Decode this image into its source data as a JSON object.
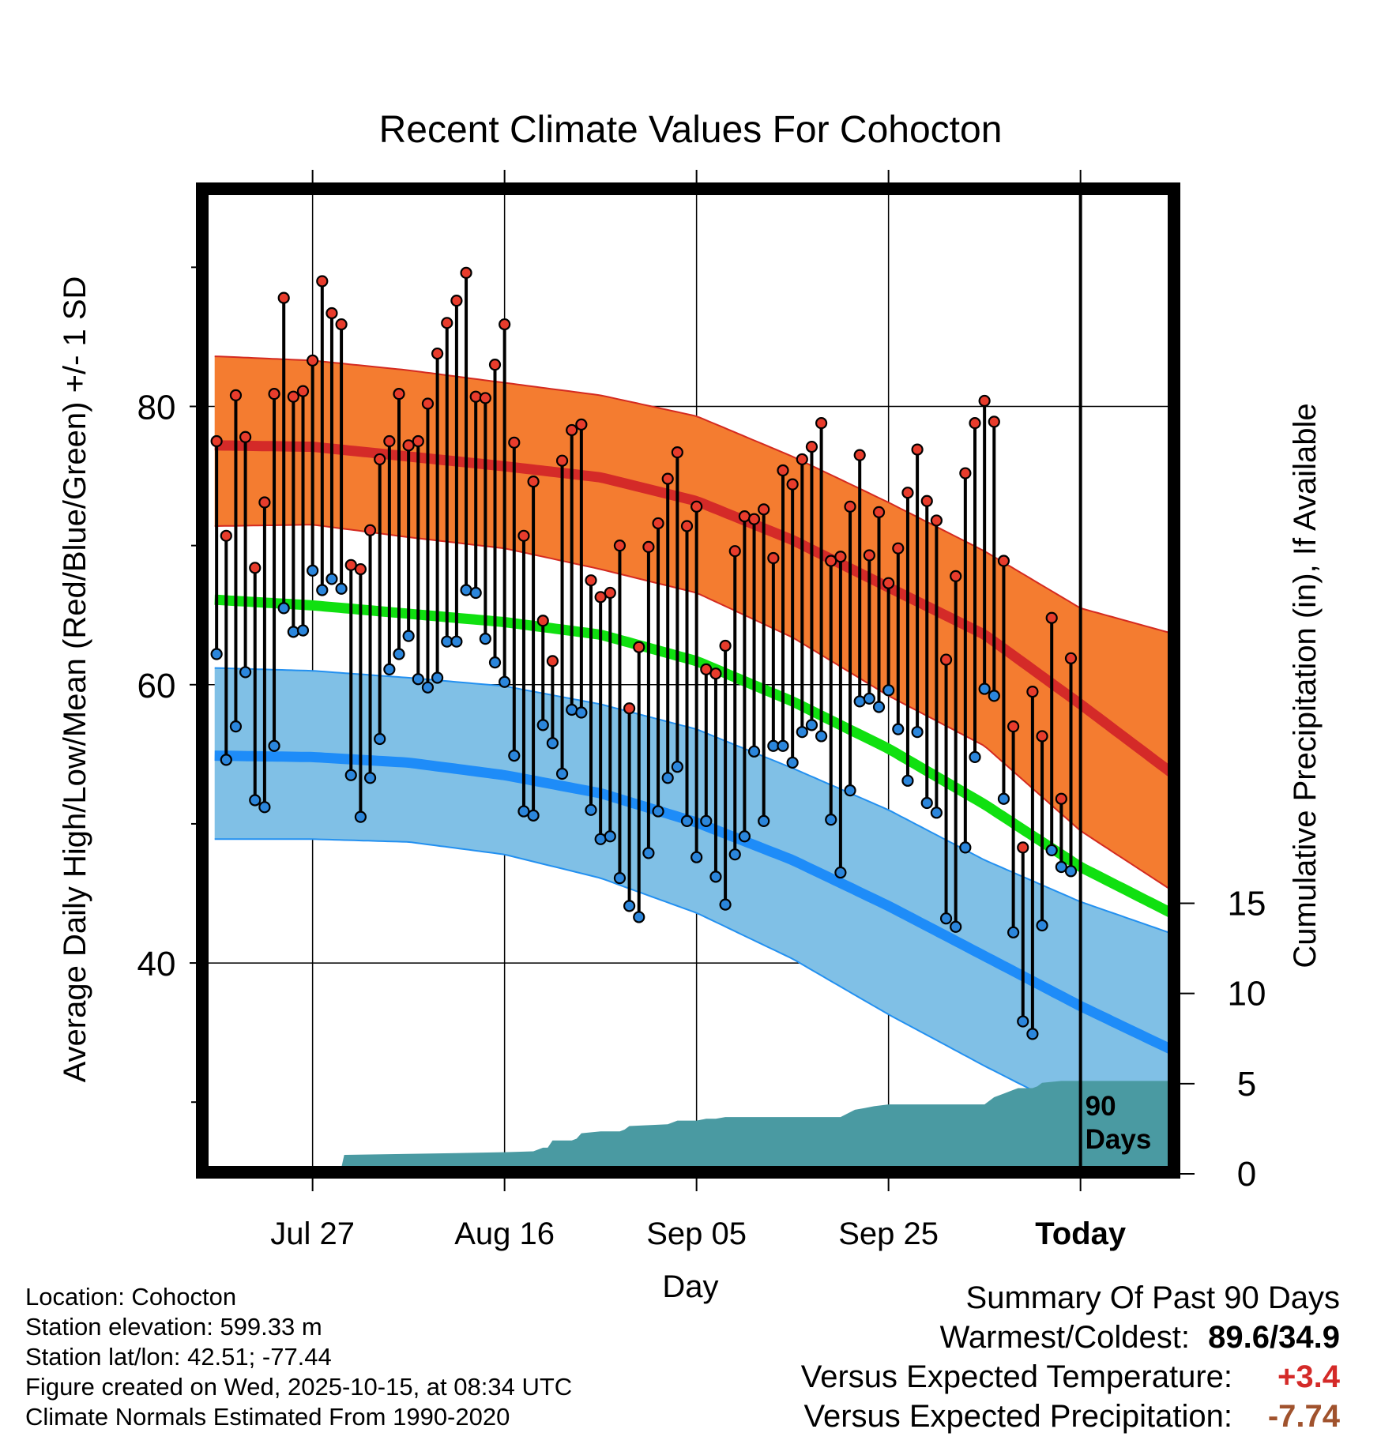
{
  "chart_data": {
    "type": "line",
    "title": "Recent Climate Values For Cohocton",
    "xlabel": "Day",
    "ylabel": "Average Daily High/Low/Mean (Red/Blue/Green) +/- 1 SD",
    "ylabel_right": "Cumulative Precipitation (in), If Available",
    "x_tick_labels": [
      "Jul 27",
      "Aug 16",
      "Sep 05",
      "Sep 25",
      "Today"
    ],
    "x_tick_days": [
      10,
      30,
      50,
      70,
      90
    ],
    "xlim": [
      -1,
      100
    ],
    "y_ticks": [
      40,
      60,
      80
    ],
    "y_minor_ticks": [
      30,
      50,
      70,
      90
    ],
    "ylim": [
      25.3,
      95.3
    ],
    "precip_ticks": [
      0,
      5,
      10,
      15
    ],
    "precip_ylim": [
      0,
      54
    ],
    "today_label": "90\nDays",
    "daily_high": [
      77.5,
      70.7,
      80.8,
      77.8,
      68.4,
      73.1,
      80.9,
      87.8,
      80.7,
      81.1,
      83.3,
      89.0,
      86.7,
      85.9,
      68.6,
      68.3,
      71.1,
      76.2,
      77.5,
      80.9,
      77.2,
      77.5,
      80.2,
      83.8,
      86.0,
      87.6,
      89.6,
      80.7,
      80.6,
      83.0,
      85.9,
      77.4,
      70.7,
      74.6,
      64.6,
      61.7,
      76.1,
      78.3,
      78.7,
      67.5,
      66.3,
      66.6,
      70.0,
      58.3,
      62.7,
      69.9,
      71.6,
      74.8,
      76.7,
      71.4,
      72.8,
      61.1,
      60.8,
      62.8,
      69.6,
      72.1,
      71.9,
      72.6,
      69.1,
      75.4,
      74.4,
      76.2,
      77.1,
      78.8,
      68.9,
      69.2,
      72.8,
      76.5,
      69.3,
      72.4,
      67.3,
      69.8,
      73.8,
      76.9,
      73.2,
      71.8,
      61.8,
      67.8,
      75.2,
      78.8,
      80.4,
      78.9,
      68.9,
      57.0,
      48.3,
      59.5,
      56.3,
      64.8,
      51.8,
      61.9
    ],
    "daily_low": [
      62.2,
      54.6,
      57.0,
      60.9,
      51.7,
      51.2,
      55.6,
      65.5,
      63.8,
      63.9,
      68.2,
      66.8,
      67.6,
      66.9,
      53.5,
      50.5,
      53.3,
      56.1,
      61.1,
      62.2,
      63.5,
      60.4,
      59.8,
      60.5,
      63.1,
      63.1,
      66.8,
      66.6,
      63.3,
      61.6,
      60.2,
      54.9,
      50.9,
      50.6,
      57.1,
      55.8,
      53.6,
      58.2,
      58.0,
      51.0,
      48.9,
      49.1,
      46.1,
      44.1,
      43.3,
      47.9,
      50.9,
      53.3,
      54.1,
      50.2,
      47.6,
      50.2,
      46.2,
      44.2,
      47.8,
      49.1,
      55.2,
      50.2,
      55.6,
      55.6,
      54.4,
      56.6,
      57.1,
      56.3,
      50.3,
      46.5,
      52.4,
      58.8,
      59.0,
      58.4,
      59.6,
      56.8,
      53.1,
      56.6,
      51.5,
      50.8,
      43.2,
      42.6,
      48.3,
      54.8,
      59.7,
      59.2,
      51.8,
      42.2,
      35.8,
      34.9,
      42.7,
      48.1,
      46.9,
      46.6
    ],
    "normal_high": {
      "day": [
        0,
        10,
        20,
        30,
        40,
        50,
        60,
        70,
        80,
        90,
        100
      ],
      "values": [
        77.2,
        77.1,
        76.4,
        75.7,
        74.9,
        73.2,
        70.4,
        67.0,
        63.6,
        58.6,
        53.4
      ]
    },
    "normal_high_sd_upper": {
      "day": [
        0,
        10,
        20,
        30,
        40,
        50,
        60,
        70,
        80,
        90,
        100
      ],
      "values": [
        83.6,
        83.3,
        82.6,
        81.7,
        80.8,
        79.3,
        76.4,
        73.1,
        69.6,
        65.5,
        63.6
      ]
    },
    "normal_high_sd_lower": {
      "day": [
        0,
        10,
        20,
        30,
        40,
        50,
        60,
        70,
        80,
        90,
        100
      ],
      "values": [
        71.4,
        71.5,
        70.6,
        69.8,
        68.3,
        66.6,
        63.4,
        59.2,
        55.6,
        49.5,
        45.0
      ]
    },
    "normal_mean": {
      "day": [
        0,
        10,
        20,
        30,
        40,
        50,
        60,
        70,
        80,
        90,
        100
      ],
      "values": [
        66.1,
        65.7,
        65.1,
        64.5,
        63.6,
        61.7,
        58.8,
        55.4,
        51.4,
        46.9,
        43.4
      ]
    },
    "normal_low": {
      "day": [
        0,
        10,
        20,
        30,
        40,
        50,
        60,
        70,
        80,
        90,
        100
      ],
      "values": [
        54.9,
        54.8,
        54.4,
        53.5,
        52.2,
        50.1,
        47.4,
        44.1,
        40.5,
        36.9,
        33.6
      ]
    },
    "normal_low_sd_upper": {
      "day": [
        0,
        10,
        20,
        30,
        40,
        50,
        60,
        70,
        80,
        90,
        100
      ],
      "values": [
        61.2,
        61.0,
        60.5,
        59.9,
        58.6,
        56.8,
        54.0,
        51.0,
        47.4,
        44.4,
        42.0
      ]
    },
    "normal_low_sd_lower": {
      "day": [
        0,
        10,
        20,
        30,
        40,
        50,
        60,
        70,
        80,
        90,
        100
      ],
      "values": [
        48.9,
        48.9,
        48.7,
        47.8,
        46.1,
        43.6,
        40.3,
        36.3,
        32.6,
        29.1,
        27.9
      ]
    },
    "cumulative_precip": {
      "day": [
        13,
        13.3,
        25,
        30,
        33,
        34,
        34.5,
        35,
        37,
        37.5,
        38,
        40,
        41,
        42,
        42.5,
        43,
        47,
        48,
        50,
        51,
        52,
        53,
        57,
        65,
        66.5,
        67.5,
        68.5,
        70,
        71,
        72,
        75,
        77,
        80,
        81,
        83,
        83.5,
        85,
        85.5,
        86,
        88,
        89,
        90,
        100
      ],
      "values": [
        0.0,
        0.7,
        0.8,
        0.85,
        0.9,
        1.1,
        1.1,
        1.5,
        1.5,
        1.6,
        1.9,
        2.0,
        2.0,
        2.0,
        2.1,
        2.3,
        2.4,
        2.6,
        2.6,
        2.7,
        2.7,
        2.8,
        2.8,
        2.8,
        3.2,
        3.3,
        3.4,
        3.5,
        3.5,
        3.5,
        3.5,
        3.5,
        3.5,
        3.9,
        4.3,
        4.4,
        4.4,
        4.5,
        4.7,
        4.8,
        4.8,
        4.8,
        4.8
      ]
    },
    "colors": {
      "high_band": "#f47c30",
      "high_band_edge": "#d42a20",
      "high_line": "#d42a28",
      "mean_line": "#10e010",
      "low_band": "#80c0e6",
      "low_band_edge": "#2390f0",
      "low_line": "#1e8cf8",
      "precip": "#4a9aa2",
      "high_dot": "#e83c2c",
      "low_dot": "#2b86dc"
    }
  },
  "footer": {
    "location": "Location: Cohocton",
    "elevation": "Station elevation: 599.33 m",
    "latlon": "Station lat/lon: 42.51; -77.44",
    "created": "Figure created on Wed, 2025-10-15, at 08:34 UTC",
    "normals": "Climate Normals Estimated From 1990-2020"
  },
  "summary": {
    "heading": "Summary Of Past 90 Days",
    "warmest_coldest_label": "Warmest/Coldest:",
    "warmest_coldest_value": "89.6/34.9",
    "temp_label": "Versus Expected Temperature:",
    "temp_value": "+3.4",
    "temp_color": "#d42a28",
    "precip_label": "Versus Expected Precipitation:",
    "precip_value": "-7.74",
    "precip_color": "#a0522d"
  }
}
